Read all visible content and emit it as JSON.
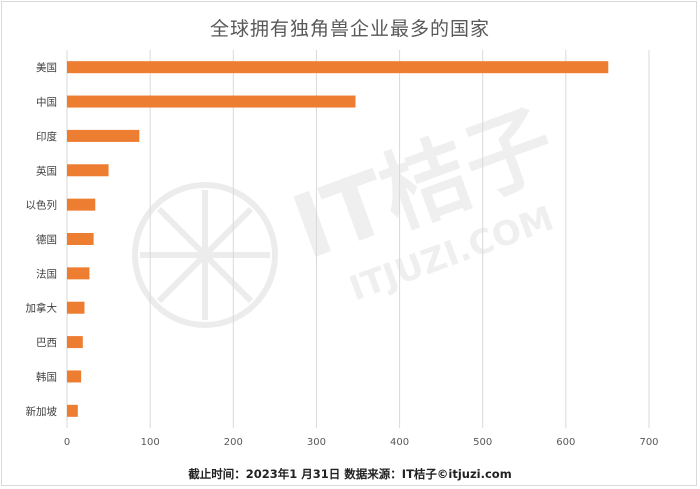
{
  "chart_data": {
    "type": "bar",
    "orientation": "horizontal",
    "title": "全球拥有独角兽企业最多的国家",
    "categories": [
      "美国",
      "中国",
      "印度",
      "英国",
      "以色列",
      "德国",
      "法国",
      "加拿大",
      "巴西",
      "韩国",
      "新加坡"
    ],
    "values": [
      651,
      347,
      87,
      50,
      34,
      32,
      27,
      21,
      19,
      17,
      13
    ],
    "xlim": [
      0,
      700
    ],
    "xticks": [
      0,
      100,
      200,
      300,
      400,
      500,
      600,
      700
    ],
    "grid": true,
    "bar_color": "#ED7D31",
    "grid_color": "#d9d9d9"
  },
  "footer": "截止时间：2023年1 月31日 数据来源：IT桔子©itjuzi.com",
  "watermark": {
    "text": "IT桔子",
    "subtext": "ITJUZI.COM"
  }
}
